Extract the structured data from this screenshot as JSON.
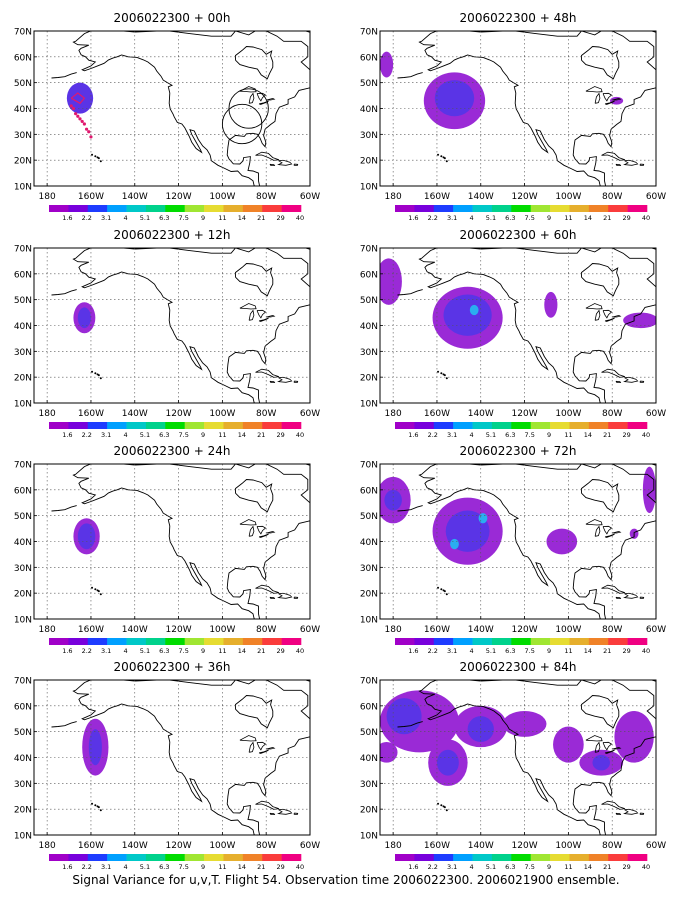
{
  "footer_caption": "Signal Variance for u,v,T. Flight 54. Observation time 2006022300. 2006021900 ensemble.",
  "map_axes": {
    "lat_labels": [
      "70N",
      "60N",
      "50N",
      "40N",
      "30N",
      "20N",
      "10N"
    ],
    "lat_values": [
      70,
      60,
      50,
      40,
      30,
      20,
      10
    ],
    "lon_labels": [
      "180",
      "160W",
      "140W",
      "120W",
      "100W",
      "80W",
      "60W"
    ],
    "lon_values": [
      -180,
      -160,
      -140,
      -120,
      -100,
      -80,
      -60
    ],
    "lon_range": [
      -186,
      -60
    ],
    "lat_range": [
      10,
      70
    ],
    "grid": true
  },
  "colorbar": {
    "labels": [
      "1.6",
      "2.2",
      "3.1",
      "4",
      "5.1",
      "6.3",
      "7.5",
      "9",
      "11",
      "14",
      "21",
      "29",
      "40"
    ],
    "colors": [
      "#a000c8",
      "#7800dc",
      "#1e3cff",
      "#00a0ff",
      "#00c8c8",
      "#00d28c",
      "#00dc00",
      "#a0e632",
      "#e6dc32",
      "#e6af2d",
      "#f08228",
      "#fa3c3c",
      "#f00082"
    ]
  },
  "panels": [
    {
      "title": "2006022300 + 00h",
      "blobs": [
        {
          "lon": -165,
          "lat": 44,
          "rx": 6,
          "ry": 6,
          "level": 1
        }
      ],
      "track": [
        [
          -169,
          41
        ],
        [
          -168,
          40
        ],
        [
          -167,
          38
        ],
        [
          -166,
          37
        ],
        [
          -165,
          36
        ],
        [
          -164,
          35
        ],
        [
          -163,
          34
        ],
        [
          -162,
          32
        ],
        [
          -161,
          31
        ],
        [
          -160,
          29
        ]
      ],
      "circles": [
        {
          "lon": -88,
          "lat": 40,
          "r": 9
        },
        {
          "lon": -91,
          "lat": 34,
          "r": 9
        }
      ]
    },
    {
      "title": "2006022300 + 48h",
      "blobs": [
        {
          "lon": -152,
          "lat": 43,
          "rx": 14,
          "ry": 11,
          "level": 0
        },
        {
          "lon": -152,
          "lat": 44,
          "rx": 9,
          "ry": 7,
          "level": 1
        },
        {
          "lon": -183,
          "lat": 57,
          "rx": 3,
          "ry": 5,
          "level": 0
        },
        {
          "lon": -78,
          "lat": 43,
          "rx": 3,
          "ry": 1.5,
          "level": 0
        }
      ]
    },
    {
      "title": "2006022300 + 12h",
      "blobs": [
        {
          "lon": -163,
          "lat": 43,
          "rx": 5,
          "ry": 6,
          "level": 0
        },
        {
          "lon": -163,
          "lat": 43,
          "rx": 3,
          "ry": 4,
          "level": 1
        }
      ]
    },
    {
      "title": "2006022300 + 60h",
      "blobs": [
        {
          "lon": -146,
          "lat": 43,
          "rx": 16,
          "ry": 12,
          "level": 0
        },
        {
          "lon": -146,
          "lat": 44,
          "rx": 11,
          "ry": 8,
          "level": 1
        },
        {
          "lon": -143,
          "lat": 46,
          "rx": 2,
          "ry": 2,
          "level": 2
        },
        {
          "lon": -182,
          "lat": 57,
          "rx": 6,
          "ry": 9,
          "level": 0
        },
        {
          "lon": -108,
          "lat": 48,
          "rx": 3,
          "ry": 5,
          "level": 0
        },
        {
          "lon": -67,
          "lat": 42,
          "rx": 8,
          "ry": 3,
          "level": 0
        }
      ]
    },
    {
      "title": "2006022300 + 24h",
      "blobs": [
        {
          "lon": -162,
          "lat": 42,
          "rx": 6,
          "ry": 7,
          "level": 0
        },
        {
          "lon": -162,
          "lat": 42,
          "rx": 4,
          "ry": 5,
          "level": 1
        }
      ]
    },
    {
      "title": "2006022300 + 72h",
      "blobs": [
        {
          "lon": -180,
          "lat": 56,
          "rx": 8,
          "ry": 9,
          "level": 0
        },
        {
          "lon": -180,
          "lat": 56,
          "rx": 4,
          "ry": 4,
          "level": 1
        },
        {
          "lon": -146,
          "lat": 44,
          "rx": 16,
          "ry": 13,
          "level": 0
        },
        {
          "lon": -146,
          "lat": 44,
          "rx": 10,
          "ry": 8,
          "level": 1
        },
        {
          "lon": -152,
          "lat": 39,
          "rx": 2,
          "ry": 2,
          "level": 2
        },
        {
          "lon": -139,
          "lat": 49,
          "rx": 2,
          "ry": 2,
          "level": 2
        },
        {
          "lon": -103,
          "lat": 40,
          "rx": 7,
          "ry": 5,
          "level": 0
        },
        {
          "lon": -70,
          "lat": 43,
          "rx": 2,
          "ry": 2,
          "level": 0
        },
        {
          "lon": -63,
          "lat": 60,
          "rx": 3,
          "ry": 9,
          "level": 0
        }
      ]
    },
    {
      "title": "2006022300 + 36h",
      "blobs": [
        {
          "lon": -158,
          "lat": 44,
          "rx": 6,
          "ry": 11,
          "level": 0
        },
        {
          "lon": -158,
          "lat": 44,
          "rx": 3,
          "ry": 7,
          "level": 1
        }
      ]
    },
    {
      "title": "2006022300 + 84h",
      "blobs": [
        {
          "lon": -168,
          "lat": 54,
          "rx": 18,
          "ry": 12,
          "level": 0
        },
        {
          "lon": -175,
          "lat": 56,
          "rx": 8,
          "ry": 7,
          "level": 1
        },
        {
          "lon": -140,
          "lat": 52,
          "rx": 12,
          "ry": 8,
          "level": 0
        },
        {
          "lon": -140,
          "lat": 51,
          "rx": 6,
          "ry": 5,
          "level": 1
        },
        {
          "lon": -155,
          "lat": 38,
          "rx": 9,
          "ry": 9,
          "level": 0
        },
        {
          "lon": -155,
          "lat": 38,
          "rx": 5,
          "ry": 5,
          "level": 1
        },
        {
          "lon": -120,
          "lat": 53,
          "rx": 10,
          "ry": 5,
          "level": 0
        },
        {
          "lon": -100,
          "lat": 45,
          "rx": 7,
          "ry": 7,
          "level": 0
        },
        {
          "lon": -85,
          "lat": 38,
          "rx": 10,
          "ry": 5,
          "level": 0
        },
        {
          "lon": -85,
          "lat": 38,
          "rx": 4,
          "ry": 3,
          "level": 1
        },
        {
          "lon": -70,
          "lat": 48,
          "rx": 9,
          "ry": 10,
          "level": 0
        },
        {
          "lon": -183,
          "lat": 42,
          "rx": 5,
          "ry": 4,
          "level": 0
        }
      ]
    }
  ]
}
